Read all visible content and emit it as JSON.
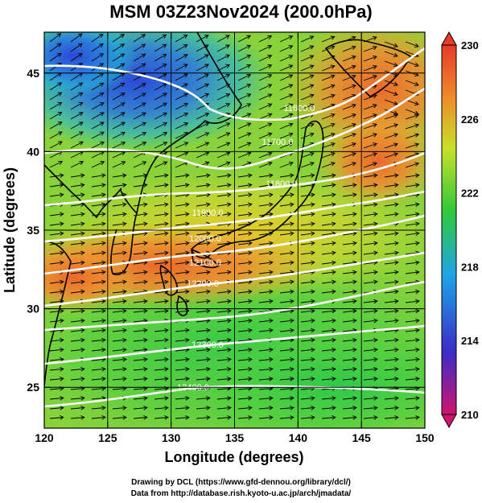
{
  "figure": {
    "title": "MSM 03Z23Nov2024 (200.0hPa)",
    "xlabel": "Longitude (degrees)",
    "ylabel": "Latitude  (degrees)",
    "xlim": [
      120,
      150
    ],
    "ylim": [
      22.4,
      47.6
    ],
    "x_ticks": [
      "120",
      "125",
      "130",
      "135",
      "140",
      "145",
      "150"
    ],
    "y_ticks": [
      "25",
      "30",
      "35",
      "40",
      "45"
    ],
    "grid": true
  },
  "colorbar": {
    "range": [
      210,
      230
    ],
    "labels": [
      "230",
      "226",
      "222",
      "218",
      "214",
      "210"
    ],
    "colors": [
      "#d0156e",
      "#3a2cc8",
      "#1ea6e6",
      "#30c83a",
      "#c8e02a",
      "#ef8a2a",
      "#e63a2a"
    ]
  },
  "contours": [
    {
      "label": "11600.0"
    },
    {
      "label": "11700.0"
    },
    {
      "label": "11800.0"
    },
    {
      "label": "11900.0"
    },
    {
      "label": "12000.0"
    },
    {
      "label": "12100.0"
    },
    {
      "label": "12200.0"
    },
    {
      "label": "12300.0"
    },
    {
      "label": "12400.0"
    }
  ],
  "credits": {
    "line1": "Drawing by DCL (https://www.gfd-dennou.org/library/dcl/)",
    "line2": "Data from http://database.rish.kyoto-u.ac.jp/arch/jmadata/"
  }
}
